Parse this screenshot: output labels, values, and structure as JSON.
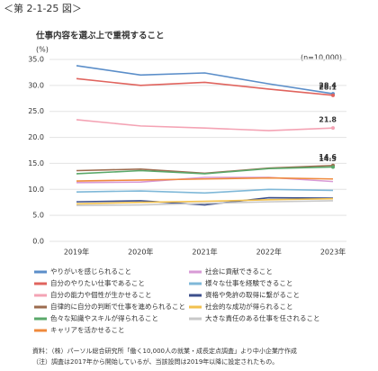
{
  "header": "＜第 2-1-25 図＞",
  "chart_data": {
    "type": "line",
    "title": "仕事内容を選ぶ上で重視すること",
    "y_unit": "(%)",
    "sample_note": "(n=10,000)",
    "categories": [
      "2019年",
      "2020年",
      "2021年",
      "2022年",
      "2023年"
    ],
    "ylim": [
      0,
      35
    ],
    "yticks": [
      {
        "value": 0,
        "label": "0.0"
      },
      {
        "value": 5,
        "label": "5.0"
      },
      {
        "value": 10,
        "label": "10.0"
      },
      {
        "value": 15,
        "label": "15.0"
      },
      {
        "value": 20,
        "label": "20.0"
      },
      {
        "value": 25,
        "label": "25.0"
      },
      {
        "value": 30,
        "label": "30.0"
      },
      {
        "value": 35,
        "label": "35.0"
      }
    ],
    "grid": true,
    "series": [
      {
        "name": "やりがいを感じられること",
        "color": "#5b8ec9",
        "values": [
          33.8,
          32.0,
          32.4,
          30.3,
          28.4
        ],
        "end_label": true
      },
      {
        "name": "社会に貢献できること",
        "color": "#d89ad6",
        "values": [
          11.3,
          11.4,
          12.3,
          12.3,
          11.5
        ]
      },
      {
        "name": "自分のやりたい仕事であること",
        "color": "#e0645e",
        "values": [
          31.3,
          30.0,
          30.6,
          29.3,
          28.1
        ],
        "end_label": true
      },
      {
        "name": "様々な仕事を経験できること",
        "color": "#7fb8d8",
        "values": [
          9.5,
          9.7,
          9.3,
          10.0,
          9.8
        ]
      },
      {
        "name": "自分の能力や個性が生かせること",
        "color": "#f4a3b4",
        "values": [
          23.4,
          22.2,
          21.8,
          21.3,
          21.8
        ],
        "end_label": true
      },
      {
        "name": "資格や免許の取得に繋がること",
        "color": "#3c4f8c",
        "values": [
          7.6,
          7.8,
          7.0,
          8.4,
          8.3
        ]
      },
      {
        "name": "自律的に自分の判断で仕事を進められること",
        "color": "#9c6b4e",
        "values": [
          13.6,
          13.9,
          13.1,
          14.1,
          14.6
        ],
        "end_label": true
      },
      {
        "name": "社会的な成功が得られること",
        "color": "#f2c14e",
        "values": [
          7.2,
          7.5,
          7.7,
          8.0,
          8.2
        ]
      },
      {
        "name": "色々な知識やスキルが得られること",
        "color": "#5aa86a",
        "values": [
          13.0,
          13.6,
          13.0,
          14.0,
          14.3
        ],
        "end_label": true
      },
      {
        "name": "大きな責任のある仕事を任されること",
        "color": "#c8c8c8",
        "values": [
          6.9,
          7.0,
          7.3,
          7.6,
          7.8
        ]
      },
      {
        "name": "キャリアを活かせること",
        "color": "#ef8a3c",
        "values": [
          11.6,
          11.8,
          12.0,
          12.2,
          12.0
        ]
      }
    ]
  },
  "footer": [
    "資料：（株）パーソル総合研究所「働く10,000人の就業・成長定点調査」より中小企業庁作成",
    "（注）調査は2017年から開始しているが、当該設問は2019年以降に設定されたもの。"
  ]
}
